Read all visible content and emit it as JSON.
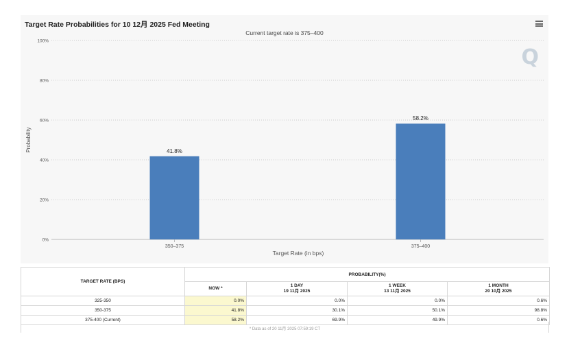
{
  "chart_data": {
    "type": "bar",
    "title": "Target Rate Probabilities for 10 12月 2025 Fed Meeting",
    "subtitle": "Current target rate is 375–400",
    "categories": [
      "350–375",
      "375–400"
    ],
    "values": [
      41.8,
      58.2
    ],
    "data_labels": [
      "41.8%",
      "58.2%"
    ],
    "xlabel": "Target Rate (in bps)",
    "ylabel": "Probability",
    "ylim": [
      0,
      100
    ],
    "yticks": [
      "0%",
      "20%",
      "40%",
      "60%",
      "80%",
      "100%"
    ],
    "ytick_values": [
      0,
      20,
      40,
      60,
      80,
      100
    ],
    "grid": true,
    "bar_color": "#4a7ebb",
    "watermark": "Q"
  },
  "table": {
    "col_target": "TARGET RATE (BPS)",
    "col_probability": "PROBABILITY(%)",
    "sub_now": "NOW *",
    "sub_1day": "1 DAY",
    "sub_1day_date": "19 11月 2025",
    "sub_1week": "1 WEEK",
    "sub_1week_date": "13 11月 2025",
    "sub_1month": "1 MONTH",
    "sub_1month_date": "20 10月 2025",
    "rows": [
      {
        "rate": "325-350",
        "now": "0.0%",
        "day": "0.0%",
        "week": "0.0%",
        "month": "0.6%"
      },
      {
        "rate": "350-375",
        "now": "41.8%",
        "day": "30.1%",
        "week": "50.1%",
        "month": "98.8%"
      },
      {
        "rate": "375-400 (Current)",
        "now": "58.2%",
        "day": "69.9%",
        "week": "49.9%",
        "month": "0.6%"
      }
    ],
    "note": "* Data as of 20 11月 2025 07:59:19 CT"
  },
  "colors": {
    "now_highlight": "#fbf8cf",
    "grid": "#cccccc"
  }
}
